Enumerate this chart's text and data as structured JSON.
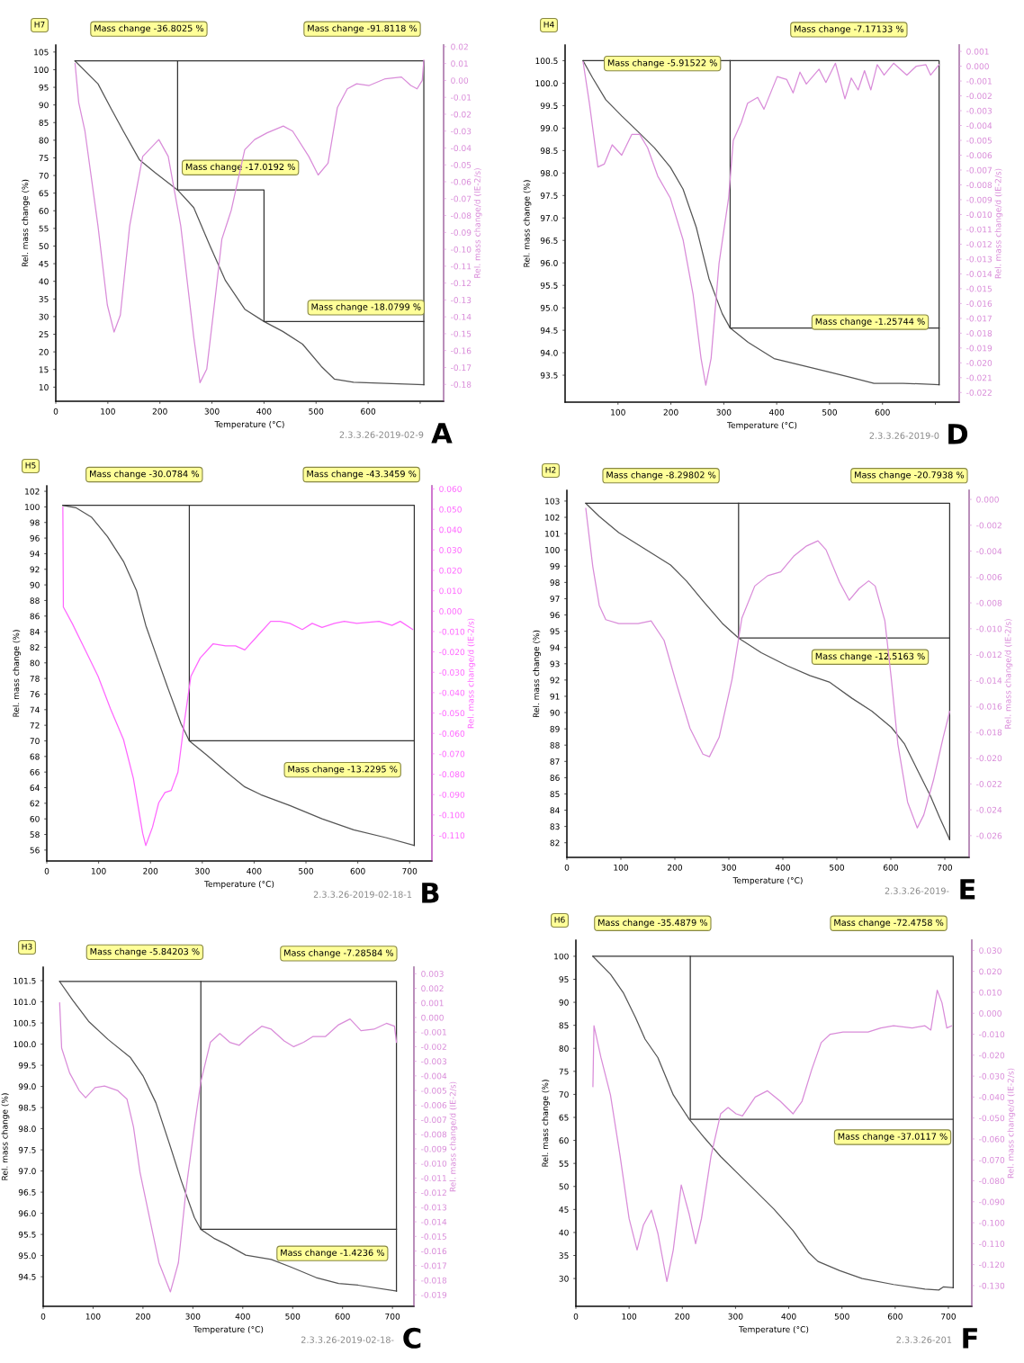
{
  "chart_data": [
    {
      "type": "line",
      "title": "H7",
      "subtitle": "A",
      "xlabel": "Temperature (°C)",
      "ylabel": "Rel. mass change (%)",
      "y2label": "Rel. mass change/d (IE-2/s)",
      "xlim": [
        0,
        745
      ],
      "xticks": [
        0,
        100,
        200,
        300,
        400,
        500,
        600,
        {
          "value": 700,
          "label": null
        }
      ],
      "ylim": [
        6,
        107
      ],
      "yticks": [
        10,
        15,
        20,
        25,
        30,
        35,
        40,
        45,
        50,
        55,
        60,
        65,
        70,
        75,
        80,
        85,
        90,
        95,
        100,
        105
      ],
      "y2lim": [
        -0.19,
        0.021
      ],
      "y2ticks": [
        0.02,
        0.01,
        {
          "value": 0,
          "label": "0.00"
        },
        -0.01,
        -0.02,
        -0.03,
        -0.04,
        -0.05,
        -0.06,
        -0.07,
        -0.08,
        -0.09,
        {
          "value": -0.1,
          "label": "-0.10"
        },
        -0.11,
        -0.12,
        -0.13,
        -0.14,
        -0.15,
        -0.16,
        -0.17,
        -0.18
      ],
      "series": [
        {
          "color": "#555555",
          "x": [
            37,
            81,
            106,
            130,
            161,
            191,
            234,
            265,
            296,
            326,
            363,
            400,
            436,
            474,
            510,
            535,
            572,
            633,
            707
          ],
          "values": [
            102.5,
            96,
            89,
            82.5,
            74.4,
            70.8,
            65.9,
            60.9,
            50.1,
            40.2,
            32.1,
            28.6,
            25.8,
            22.2,
            15.9,
            12.3,
            11.4,
            11.1,
            10.7
          ]
        },
        {
          "color": "#d98cd9",
          "axis": "y2",
          "x": [
            37,
            44,
            56,
            81,
            99,
            112,
            124,
            142,
            167,
            198,
            216,
            240,
            265,
            277,
            290,
            308,
            319,
            337,
            363,
            382,
            406,
            437,
            455,
            486,
            504,
            523,
            541,
            560,
            578,
            602,
            633,
            664,
            682,
            694,
            704,
            707
          ],
          "values": [
            0.01,
            -0.013,
            -0.03,
            -0.086,
            -0.133,
            -0.149,
            -0.139,
            -0.086,
            -0.045,
            -0.035,
            -0.045,
            -0.086,
            -0.152,
            -0.179,
            -0.171,
            -0.124,
            -0.094,
            -0.077,
            -0.041,
            -0.035,
            -0.031,
            -0.027,
            -0.03,
            -0.045,
            -0.056,
            -0.049,
            -0.016,
            -0.005,
            -0.002,
            -0.003,
            0.001,
            0.002,
            -0.003,
            -0.005,
            0,
            0.012
          ]
        },
        {
          "color": "#333333",
          "x": [
            37,
            707,
            707
          ],
          "values": [
            102.5,
            102.5,
            10.7
          ]
        },
        {
          "color": "#333333",
          "x": [
            234,
            234,
            400,
            400,
            707
          ],
          "values": [
            102.5,
            65.9,
            65.9,
            28.6,
            28.6
          ]
        }
      ],
      "annotations": [
        "Mass change -36.8025 %",
        "Mass change -91.8118 %",
        "Mass change -17.0192 %",
        "Mass change -18.0799 %",
        "2.3.3.26-2019-02-9"
      ]
    },
    {
      "type": "line",
      "title": "H4",
      "subtitle": "D",
      "xlabel": "Temperature (°C)",
      "ylabel": "Rel. mass change (%)",
      "y2label": "Rel. mass change/d (IE-2/s)",
      "xlim": [
        0,
        745
      ],
      "xticks": [
        100,
        200,
        300,
        400,
        500,
        600,
        {
          "value": 700,
          "label": null
        }
      ],
      "ylim": [
        92.9,
        100.85
      ],
      "yticks": [
        100.5,
        {
          "value": 100,
          "label": "100.0"
        },
        99.5,
        {
          "value": 99,
          "label": "99.0"
        },
        98.5,
        {
          "value": 98,
          "label": "98.0"
        },
        97.5,
        {
          "value": 97,
          "label": "97.0"
        },
        96.5,
        {
          "value": 96,
          "label": "96.0"
        },
        95.5,
        {
          "value": 95,
          "label": "95.0"
        },
        94.5,
        {
          "value": 94,
          "label": "94.0"
        },
        93.5
      ],
      "y2lim": [
        -0.02265,
        0.00143
      ],
      "y2ticks": [
        0.001,
        {
          "value": 0,
          "label": "0.000"
        },
        -0.001,
        -0.002,
        -0.003,
        -0.004,
        -0.005,
        -0.006,
        -0.007,
        -0.008,
        -0.009,
        {
          "value": -0.01,
          "label": "-0.010"
        },
        -0.011,
        -0.012,
        -0.013,
        -0.014,
        -0.015,
        -0.016,
        -0.017,
        -0.018,
        -0.019,
        {
          "value": -0.02,
          "label": "-0.020"
        },
        -0.021,
        -0.022
      ],
      "series": [
        {
          "color": "#555555",
          "x": [
            34,
            52,
            77,
            107,
            138,
            169,
            199,
            223,
            248,
            272,
            297,
            312,
            346,
            395,
            444,
            493,
            541,
            584,
            639,
            707
          ],
          "values": [
            100.5,
            100.12,
            99.63,
            99.27,
            98.92,
            98.56,
            98.13,
            97.64,
            96.79,
            95.65,
            94.87,
            94.55,
            94.23,
            93.87,
            93.73,
            93.59,
            93.45,
            93.32,
            93.32,
            93.29
          ]
        },
        {
          "color": "#d98cd9",
          "axis": "y2",
          "x": [
            34,
            46,
            62,
            74,
            89,
            107,
            126,
            141,
            156,
            175,
            199,
            223,
            242,
            257,
            266,
            276,
            291,
            309,
            318,
            333,
            345,
            364,
            376,
            401,
            419,
            431,
            444,
            456,
            480,
            493,
            511,
            529,
            541,
            554,
            566,
            578,
            590,
            603,
            621,
            646,
            664,
            682,
            691,
            707
          ],
          "values": [
            0.0003,
            -0.0025,
            -0.0068,
            -0.0066,
            -0.0053,
            -0.006,
            -0.0046,
            -0.0046,
            -0.0055,
            -0.0074,
            -0.0089,
            -0.0117,
            -0.0154,
            -0.0197,
            -0.0215,
            -0.0197,
            -0.0133,
            -0.0089,
            -0.005,
            -0.0038,
            -0.0025,
            -0.0021,
            -0.0029,
            -0.0007,
            -0.0009,
            -0.0018,
            -0.0004,
            -0.0012,
            -0.0002,
            -0.0011,
            0.0002,
            -0.0022,
            -0.0008,
            -0.0016,
            -0.0003,
            -0.0016,
            0.0001,
            -0.0006,
            0.0002,
            -0.0006,
            0,
            0.0001,
            -0.0006,
            0.0001
          ]
        },
        {
          "color": "#333333",
          "x": [
            34,
            707,
            707
          ],
          "values": [
            100.5,
            100.5,
            93.29
          ]
        },
        {
          "color": "#333333",
          "x": [
            312,
            312,
            707
          ],
          "values": [
            100.5,
            94.55,
            94.55
          ]
        }
      ],
      "annotations": [
        "Mass change -5.91522 %",
        "Mass change -7.17133 %",
        "Mass change -1.25744 %",
        "2.3.3.26-2019-0"
      ]
    },
    {
      "type": "line",
      "title": "H5",
      "subtitle": "B",
      "xlabel": "Temperature (°C)",
      "ylabel": "Rel. mass change (%)",
      "y2label": "Rel. mass change/d (IE-2/s)",
      "xlim": [
        0,
        743
      ],
      "xticks": [
        0,
        100,
        200,
        300,
        400,
        500,
        600,
        700
      ],
      "ylim": [
        54.6,
        102.7
      ],
      "yticks": [
        102,
        100,
        98,
        96,
        94,
        92,
        90,
        88,
        86,
        84,
        82,
        80,
        78,
        76,
        74,
        72,
        70,
        68,
        66,
        64,
        62,
        60,
        58,
        56
      ],
      "y2lim": [
        -0.1226,
        0.0615
      ],
      "y2ticks": [
        {
          "value": 0.06,
          "label": "0.060"
        },
        {
          "value": 0.05,
          "label": "0.050"
        },
        {
          "value": 0.04,
          "label": "0.040"
        },
        {
          "value": 0.03,
          "label": "0.030"
        },
        {
          "value": 0.02,
          "label": "0.020"
        },
        {
          "value": 0.01,
          "label": "0.010"
        },
        {
          "value": 0,
          "label": "0.000"
        },
        {
          "value": -0.01,
          "label": "-0.010"
        },
        {
          "value": -0.02,
          "label": "-0.020"
        },
        {
          "value": -0.03,
          "label": "-0.030"
        },
        {
          "value": -0.04,
          "label": "-0.040"
        },
        {
          "value": -0.05,
          "label": "-0.050"
        },
        {
          "value": -0.06,
          "label": "-0.060"
        },
        {
          "value": -0.07,
          "label": "-0.070"
        },
        {
          "value": -0.08,
          "label": "-0.080"
        },
        {
          "value": -0.09,
          "label": "-0.090"
        },
        {
          "value": -0.1,
          "label": "-0.100"
        },
        {
          "value": -0.11,
          "label": "-0.110"
        }
      ],
      "series": [
        {
          "color": "#555555",
          "x": [
            31,
            56,
            86,
            117,
            148,
            173,
            191,
            210,
            234,
            259,
            275,
            308,
            345,
            382,
            413,
            469,
            531,
            592,
            654,
            709
          ],
          "values": [
            100.2,
            99.9,
            98.7,
            96.2,
            93.0,
            89.3,
            84.8,
            81.2,
            76.7,
            72.2,
            70.0,
            68.2,
            66.1,
            64.1,
            63.1,
            61.7,
            60.0,
            58.6,
            57.6,
            56.6
          ]
        },
        {
          "color": "#ff66ff",
          "axis": "y2",
          "x": [
            31,
            32,
            49,
            74,
            99,
            123,
            148,
            167,
            185,
            191,
            204,
            216,
            228,
            240,
            253,
            265,
            278,
            296,
            321,
            345,
            364,
            382,
            407,
            432,
            450,
            469,
            493,
            512,
            531,
            555,
            574,
            598,
            641,
            666,
            682,
            706
          ],
          "values": [
            0.051,
            0.002,
            -0.006,
            -0.019,
            -0.032,
            -0.048,
            -0.063,
            -0.082,
            -0.109,
            -0.115,
            -0.106,
            -0.094,
            -0.089,
            -0.088,
            -0.079,
            -0.055,
            -0.032,
            -0.023,
            -0.016,
            -0.017,
            -0.017,
            -0.019,
            -0.012,
            -0.005,
            -0.005,
            -0.006,
            -0.009,
            -0.006,
            -0.008,
            -0.006,
            -0.005,
            -0.006,
            -0.005,
            -0.007,
            -0.005,
            -0.009
          ]
        },
        {
          "color": "#333333",
          "x": [
            31,
            709,
            709
          ],
          "values": [
            100.2,
            100.2,
            56.6
          ]
        },
        {
          "color": "#333333",
          "x": [
            275,
            275,
            709
          ],
          "values": [
            100.2,
            70.0,
            70.0
          ]
        }
      ],
      "annotations": [
        "Mass change -30.0784 %",
        "Mass change -43.3459 %",
        "Mass change -13.2295 %",
        "2.3.3.26-2019-02-18-1"
      ]
    },
    {
      "type": "line",
      "title": "H2",
      "subtitle": "E",
      "xlabel": "Temperature (°C)",
      "ylabel": "Rel. mass change (%)",
      "y2label": "Rel. mass change/d (IE-2/s)",
      "xlim": [
        0,
        745
      ],
      "xticks": [
        0,
        100,
        200,
        300,
        400,
        500,
        600,
        700
      ],
      "ylim": [
        81.1,
        103.66
      ],
      "yticks": [
        103,
        102,
        101,
        100,
        99,
        98,
        97,
        96,
        95,
        94,
        93,
        92,
        91,
        90,
        89,
        88,
        87,
        86,
        85,
        84,
        83,
        82
      ],
      "y2lim": [
        -0.02768,
        0.0007
      ],
      "y2ticks": [
        {
          "value": 0,
          "label": "0.000"
        },
        -0.002,
        -0.004,
        -0.006,
        -0.008,
        {
          "value": -0.01,
          "label": "-0.010"
        },
        -0.012,
        -0.014,
        -0.016,
        -0.018,
        {
          "value": -0.02,
          "label": "-0.020"
        },
        -0.022,
        -0.024,
        -0.026
      ],
      "series": [
        {
          "color": "#555555",
          "x": [
            35,
            60,
            96,
            144,
            192,
            222,
            252,
            288,
            318,
            360,
            408,
            450,
            486,
            528,
            565,
            601,
            625,
            649,
            673,
            691,
            709
          ],
          "values": [
            102.86,
            102.06,
            101.06,
            100.07,
            99.07,
            98.07,
            96.87,
            95.48,
            94.58,
            93.68,
            92.88,
            92.28,
            91.88,
            90.88,
            90.09,
            89.09,
            88.09,
            86.49,
            84.9,
            83.5,
            82.2
          ]
        },
        {
          "color": "#d98cd9",
          "axis": "y2",
          "x": [
            35,
            48,
            60,
            72,
            96,
            132,
            156,
            180,
            204,
            228,
            252,
            264,
            282,
            306,
            324,
            348,
            372,
            396,
            420,
            444,
            465,
            480,
            505,
            523,
            541,
            559,
            571,
            589,
            601,
            613,
            631,
            649,
            661,
            679,
            697,
            709
          ],
          "values": [
            -0.0007,
            -0.0052,
            -0.0082,
            -0.0093,
            -0.0096,
            -0.0096,
            -0.0094,
            -0.0109,
            -0.0144,
            -0.0177,
            -0.0197,
            -0.0199,
            -0.0184,
            -0.0139,
            -0.0092,
            -0.0067,
            -0.0059,
            -0.0056,
            -0.0044,
            -0.0036,
            -0.0032,
            -0.0039,
            -0.0064,
            -0.0078,
            -0.0069,
            -0.0063,
            -0.0067,
            -0.0094,
            -0.0139,
            -0.0189,
            -0.0234,
            -0.0254,
            -0.0244,
            -0.0217,
            -0.0184,
            -0.0164
          ]
        },
        {
          "color": "#333333",
          "x": [
            35,
            709,
            709
          ],
          "values": [
            102.86,
            102.86,
            82.2
          ]
        },
        {
          "color": "#333333",
          "x": [
            318,
            318,
            709
          ],
          "values": [
            102.86,
            94.58,
            94.58
          ]
        }
      ],
      "annotations": [
        "Mass change -8.29802 %",
        "Mass change -20.7938 %",
        "Mass change -12.5163 %",
        "2.3.3.26-2019-"
      ]
    },
    {
      "type": "line",
      "title": "H3",
      "subtitle": "C",
      "xlabel": "Temperature (°C)",
      "ylabel": "Rel. mass change (%)",
      "y2label": "Rel. mass change/d (IE-2/s)",
      "xlim": [
        0,
        743
      ],
      "xticks": [
        0,
        100,
        200,
        300,
        400,
        500,
        600,
        700
      ],
      "ylim": [
        93.8,
        101.82
      ],
      "yticks": [
        101.5,
        {
          "value": 101,
          "label": "101.0"
        },
        100.5,
        {
          "value": 100,
          "label": "100.0"
        },
        99.5,
        {
          "value": 99,
          "label": "99.0"
        },
        98.5,
        {
          "value": 98,
          "label": "98.0"
        },
        97.5,
        {
          "value": 97,
          "label": "97.0"
        },
        96.5,
        {
          "value": 96,
          "label": "96.0"
        },
        95.5,
        {
          "value": 95,
          "label": "95.0"
        },
        94.5
      ],
      "y2lim": [
        -0.01979,
        0.00345
      ],
      "y2ticks": [
        0.003,
        0.002,
        0.001,
        {
          "value": 0,
          "label": "0.000"
        },
        -0.001,
        -0.002,
        -0.003,
        -0.004,
        -0.005,
        -0.006,
        -0.007,
        -0.008,
        -0.009,
        {
          "value": -0.01,
          "label": "-0.010"
        },
        -0.011,
        -0.012,
        -0.013,
        -0.014,
        -0.015,
        -0.016,
        -0.017,
        -0.018,
        -0.019
      ],
      "series": [
        {
          "color": "#555555",
          "x": [
            33,
            59,
            91,
            130,
            175,
            200,
            226,
            252,
            277,
            303,
            316,
            342,
            368,
            406,
            457,
            496,
            547,
            592,
            631,
            708
          ],
          "values": [
            101.48,
            101.04,
            100.54,
            100.11,
            99.68,
            99.25,
            98.61,
            97.68,
            96.76,
            95.9,
            95.62,
            95.41,
            95.26,
            95.01,
            94.91,
            94.73,
            94.48,
            94.34,
            94.3,
            94.16
          ]
        },
        {
          "color": "#d98cd9",
          "axis": "y2",
          "x": [
            33,
            37,
            53,
            72,
            85,
            104,
            123,
            149,
            168,
            181,
            194,
            213,
            232,
            255,
            271,
            287,
            303,
            316,
            335,
            354,
            374,
            393,
            412,
            438,
            457,
            483,
            502,
            522,
            541,
            566,
            592,
            615,
            637,
            663,
            688,
            704,
            708
          ],
          "values": [
            0.001,
            -0.0021,
            -0.0038,
            -0.005,
            -0.0055,
            -0.0048,
            -0.0047,
            -0.005,
            -0.0056,
            -0.0075,
            -0.0106,
            -0.0137,
            -0.0168,
            -0.0188,
            -0.0168,
            -0.0116,
            -0.0075,
            -0.0044,
            -0.0017,
            -0.0011,
            -0.0017,
            -0.0019,
            -0.0013,
            -0.0006,
            -0.0008,
            -0.0016,
            -0.002,
            -0.0017,
            -0.0013,
            -0.0013,
            -0.0005,
            -0.0001,
            -0.0009,
            -0.0008,
            -0.0004,
            -0.0006,
            -0.0017
          ]
        },
        {
          "color": "#333333",
          "x": [
            33,
            708,
            708
          ],
          "values": [
            101.48,
            101.48,
            94.16
          ]
        },
        {
          "color": "#333333",
          "x": [
            316,
            316,
            708
          ],
          "values": [
            101.48,
            95.62,
            95.62
          ]
        }
      ],
      "annotations": [
        "Mass change -5.84203 %",
        "Mass change -7.28584 %",
        "Mass change -1.4236 %",
        "2.3.3.26-2019-02-18-"
      ]
    },
    {
      "type": "line",
      "title": "H6",
      "subtitle": "F",
      "xlabel": "Temperature (°C)",
      "ylabel": "Rel. mass change (%)",
      "y2label": "Rel. mass change/d (IE-2/s)",
      "xlim": [
        0,
        744
      ],
      "xticks": [
        0,
        100,
        200,
        300,
        400,
        500,
        600,
        700
      ],
      "ylim": [
        23.96,
        103.5
      ],
      "yticks": [
        100,
        95,
        90,
        85,
        80,
        75,
        70,
        65,
        60,
        55,
        50,
        45,
        40,
        35,
        30
      ],
      "y2lim": [
        -0.1399,
        0.0349
      ],
      "y2ticks": [
        {
          "value": 0.03,
          "label": "0.030"
        },
        {
          "value": 0.02,
          "label": "0.020"
        },
        {
          "value": 0.01,
          "label": "0.010"
        },
        {
          "value": 0,
          "label": "0.000"
        },
        {
          "value": -0.01,
          "label": "-0.010"
        },
        {
          "value": -0.02,
          "label": "-0.020"
        },
        {
          "value": -0.03,
          "label": "-0.030"
        },
        {
          "value": -0.04,
          "label": "-0.040"
        },
        {
          "value": -0.05,
          "label": "-0.050"
        },
        {
          "value": -0.06,
          "label": "-0.060"
        },
        {
          "value": -0.07,
          "label": "-0.070"
        },
        {
          "value": -0.08,
          "label": "-0.080"
        },
        {
          "value": -0.09,
          "label": "-0.090"
        },
        {
          "value": -0.1,
          "label": "-0.100"
        },
        {
          "value": -0.11,
          "label": "-0.110"
        },
        {
          "value": -0.12,
          "label": "-0.120"
        },
        {
          "value": -0.13,
          "label": "-0.130"
        }
      ],
      "series": [
        {
          "color": "#555555",
          "x": [
            32,
            65,
            89,
            112,
            130,
            154,
            183,
            213,
            242,
            272,
            301,
            337,
            372,
            408,
            437,
            455,
            496,
            538,
            597,
            656,
            682,
            691,
            709
          ],
          "values": [
            100,
            96.1,
            92.1,
            86.7,
            82.0,
            78.0,
            69.9,
            64.6,
            60.5,
            56.5,
            53.2,
            49.1,
            45.1,
            40.4,
            35.7,
            33.7,
            31.7,
            30.0,
            28.7,
            27.7,
            27.5,
            28.2,
            28.0
          ]
        },
        {
          "color": "#d98cd9",
          "axis": "y2",
          "x": [
            32,
            34,
            47,
            65,
            83,
            100,
            115,
            127,
            142,
            154,
            171,
            183,
            198,
            213,
            225,
            236,
            254,
            272,
            286,
            301,
            313,
            337,
            360,
            384,
            408,
            425,
            443,
            461,
            478,
            502,
            526,
            549,
            573,
            597,
            632,
            656,
            667,
            679,
            688,
            697,
            706
          ],
          "values": [
            -0.035,
            -0.006,
            -0.021,
            -0.039,
            -0.068,
            -0.098,
            -0.113,
            -0.101,
            -0.094,
            -0.105,
            -0.128,
            -0.113,
            -0.082,
            -0.096,
            -0.11,
            -0.098,
            -0.068,
            -0.048,
            -0.045,
            -0.048,
            -0.049,
            -0.04,
            -0.037,
            -0.042,
            -0.048,
            -0.042,
            -0.027,
            -0.014,
            -0.01,
            -0.009,
            -0.009,
            -0.009,
            -0.007,
            -0.006,
            -0.007,
            -0.006,
            -0.008,
            0.011,
            0.005,
            -0.007,
            -0.006
          ]
        },
        {
          "color": "#333333",
          "x": [
            32,
            709,
            709
          ],
          "values": [
            100,
            100,
            28.0
          ]
        },
        {
          "color": "#333333",
          "x": [
            215,
            215,
            709
          ],
          "values": [
            100,
            64.6,
            64.6
          ]
        }
      ],
      "annotations": [
        "Mass change -35.4879 %",
        "Mass change -72.4758 %",
        "Mass change -37.0117 %",
        "2.3.3.26-201"
      ]
    }
  ]
}
